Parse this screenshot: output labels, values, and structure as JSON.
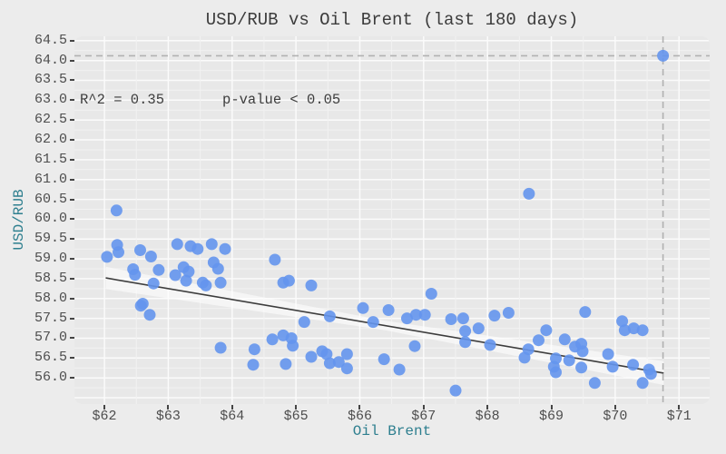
{
  "figure": {
    "background": "#ececec",
    "panel_background": "#e8e8e8"
  },
  "chart_data": {
    "type": "scatter",
    "title": "USD/RUB vs Oil Brent (last 180 days)",
    "xlabel": "Oil Brent",
    "ylabel": "USD/RUB",
    "xlim": [
      61.53,
      71.48
    ],
    "ylim": [
      55.34,
      64.61
    ],
    "grid": {
      "x_major_step": 1.0,
      "x_minor_step": 0.5,
      "y_major_step": 0.5,
      "y_minor_step": 0.25,
      "grid_on": true
    },
    "legend": null,
    "x_ticks": [
      {
        "value": 62,
        "label": "$62"
      },
      {
        "value": 63,
        "label": "$63"
      },
      {
        "value": 64,
        "label": "$64"
      },
      {
        "value": 65,
        "label": "$65"
      },
      {
        "value": 66,
        "label": "$66"
      },
      {
        "value": 67,
        "label": "$67"
      },
      {
        "value": 68,
        "label": "$68"
      },
      {
        "value": 69,
        "label": "$69"
      },
      {
        "value": 70,
        "label": "$70"
      },
      {
        "value": 71,
        "label": "$71"
      }
    ],
    "y_ticks": [
      {
        "value": 56.0,
        "label": "56.0"
      },
      {
        "value": 56.5,
        "label": "56.5"
      },
      {
        "value": 57.0,
        "label": "57.0"
      },
      {
        "value": 57.5,
        "label": "57.5"
      },
      {
        "value": 58.0,
        "label": "58.0"
      },
      {
        "value": 58.5,
        "label": "58.5"
      },
      {
        "value": 59.0,
        "label": "59.0"
      },
      {
        "value": 59.5,
        "label": "59.5"
      },
      {
        "value": 60.0,
        "label": "60.0"
      },
      {
        "value": 60.5,
        "label": "60.5"
      },
      {
        "value": 61.0,
        "label": "61.0"
      },
      {
        "value": 61.5,
        "label": "61.5"
      },
      {
        "value": 62.0,
        "label": "62.0"
      },
      {
        "value": 62.5,
        "label": "62.5"
      },
      {
        "value": 63.0,
        "label": "63.0"
      },
      {
        "value": 63.5,
        "label": "63.5"
      },
      {
        "value": 64.0,
        "label": "64.0"
      },
      {
        "value": 64.5,
        "label": "64.5"
      }
    ],
    "annotations": {
      "r2": "R^2 = 0.35",
      "pvalue": "p-value < 0.05"
    },
    "points": [
      [
        62.19,
        60.22
      ],
      [
        62.04,
        59.05
      ],
      [
        62.2,
        59.35
      ],
      [
        62.22,
        59.17
      ],
      [
        62.56,
        59.22
      ],
      [
        62.73,
        59.06
      ],
      [
        62.45,
        58.74
      ],
      [
        62.48,
        58.6
      ],
      [
        62.85,
        58.72
      ],
      [
        62.77,
        58.38
      ],
      [
        62.6,
        57.87
      ],
      [
        63.14,
        59.37
      ],
      [
        63.35,
        59.32
      ],
      [
        63.46,
        59.25
      ],
      [
        63.68,
        59.37
      ],
      [
        63.89,
        59.25
      ],
      [
        63.24,
        58.79
      ],
      [
        63.32,
        58.68
      ],
      [
        63.11,
        58.59
      ],
      [
        63.28,
        58.45
      ],
      [
        63.54,
        58.4
      ],
      [
        63.59,
        58.33
      ],
      [
        63.71,
        58.91
      ],
      [
        63.78,
        58.75
      ],
      [
        63.82,
        58.4
      ],
      [
        62.57,
        57.82
      ],
      [
        62.71,
        57.59
      ],
      [
        63.82,
        56.76
      ],
      [
        64.35,
        56.72
      ],
      [
        64.33,
        56.33
      ],
      [
        64.63,
        56.97
      ],
      [
        64.8,
        57.07
      ],
      [
        64.93,
        57.0
      ],
      [
        64.95,
        56.81
      ],
      [
        64.84,
        56.35
      ],
      [
        64.67,
        58.98
      ],
      [
        64.8,
        58.4
      ],
      [
        64.89,
        58.45
      ],
      [
        65.24,
        58.33
      ],
      [
        65.53,
        57.55
      ],
      [
        66.05,
        57.76
      ],
      [
        66.21,
        57.41
      ],
      [
        66.45,
        57.71
      ],
      [
        67.12,
        58.12
      ],
      [
        66.74,
        57.5
      ],
      [
        66.88,
        57.59
      ],
      [
        67.02,
        57.59
      ],
      [
        67.43,
        57.48
      ],
      [
        67.62,
        57.5
      ],
      [
        67.65,
        57.18
      ],
      [
        67.86,
        57.25
      ],
      [
        65.13,
        57.41
      ],
      [
        65.24,
        56.53
      ],
      [
        65.41,
        56.67
      ],
      [
        65.48,
        56.6
      ],
      [
        65.53,
        56.37
      ],
      [
        65.67,
        56.4
      ],
      [
        65.8,
        56.6
      ],
      [
        65.8,
        56.24
      ],
      [
        66.38,
        56.47
      ],
      [
        66.62,
        56.21
      ],
      [
        66.86,
        56.8
      ],
      [
        67.5,
        55.68
      ],
      [
        67.65,
        56.9
      ],
      [
        68.11,
        57.57
      ],
      [
        68.33,
        57.64
      ],
      [
        68.04,
        56.83
      ],
      [
        69.53,
        57.66
      ],
      [
        68.92,
        57.2
      ],
      [
        68.8,
        56.95
      ],
      [
        68.64,
        56.72
      ],
      [
        68.58,
        56.51
      ],
      [
        69.21,
        56.97
      ],
      [
        69.07,
        56.49
      ],
      [
        69.04,
        56.28
      ],
      [
        69.07,
        56.14
      ],
      [
        69.28,
        56.44
      ],
      [
        69.37,
        56.79
      ],
      [
        69.47,
        56.86
      ],
      [
        69.49,
        56.67
      ],
      [
        69.47,
        56.26
      ],
      [
        69.68,
        55.87
      ],
      [
        69.89,
        56.6
      ],
      [
        69.96,
        56.28
      ],
      [
        70.11,
        57.43
      ],
      [
        70.15,
        57.2
      ],
      [
        70.29,
        57.25
      ],
      [
        70.43,
        57.2
      ],
      [
        70.28,
        56.33
      ],
      [
        70.53,
        56.21
      ],
      [
        70.56,
        56.1
      ],
      [
        70.43,
        55.87
      ],
      [
        68.65,
        60.64
      ],
      [
        70.75,
        64.12
      ]
    ],
    "trendline": {
      "x1": 62.02,
      "y1": 58.52,
      "x2": 70.76,
      "y2": 56.12
    },
    "ci_band": {
      "x": [
        62.02,
        66.4,
        70.76
      ],
      "upper": [
        58.8,
        57.44,
        56.42
      ],
      "lower": [
        58.24,
        57.2,
        55.82
      ]
    },
    "highlight": {
      "x": 70.75,
      "y": 64.12
    },
    "colors": {
      "point": "#6495ED",
      "trend": "#3d3d3d",
      "band": "#ffffff",
      "dashed": "#b1b1b1",
      "axis_label": "#2e7f8f",
      "tick_label": "#4d4d4d",
      "title": "#3c3c3c",
      "grid_major": "#fbfbfb",
      "grid_minor": "#f2f2f2"
    }
  }
}
